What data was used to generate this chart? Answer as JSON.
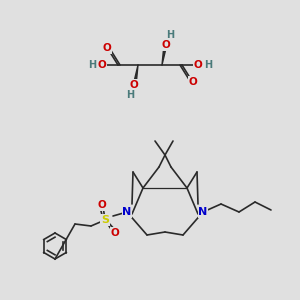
{
  "bg_color": "#e0e0e0",
  "bond_color": "#2a2a2a",
  "atom_colors": {
    "O": "#cc0000",
    "N": "#0000cc",
    "S": "#cccc00",
    "H": "#4a7a7a",
    "C": "#2a2a2a"
  },
  "figsize": [
    3.0,
    3.0
  ],
  "dpi": 100
}
